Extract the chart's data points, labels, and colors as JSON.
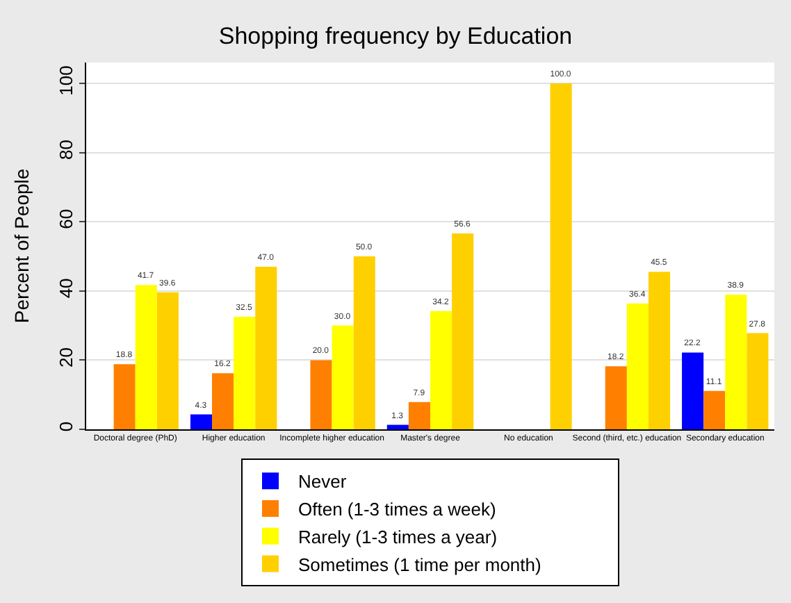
{
  "chart_data": {
    "type": "bar",
    "title": "Shopping frequency by Education",
    "ylabel": "Percent of People",
    "categories": [
      "Doctoral degree (PhD)",
      "Higher education",
      "Incomplete higher education",
      "Master's degree",
      "No education",
      "Second (third, etc.) education",
      "Secondary education"
    ],
    "series": [
      {
        "name": "Never",
        "color": "#0000ff",
        "values": [
          null,
          4.3,
          null,
          1.3,
          null,
          null,
          22.2
        ],
        "value_labels": [
          null,
          "4.3",
          null,
          "1.3",
          null,
          null,
          "22.2"
        ]
      },
      {
        "name": "Often (1-3 times a week)",
        "color": "#ff7f00",
        "values": [
          18.8,
          16.2,
          20.0,
          7.9,
          null,
          18.2,
          11.1
        ],
        "value_labels": [
          "18.8",
          "16.2",
          "20.0",
          "7.9",
          null,
          "18.2",
          "11.1"
        ]
      },
      {
        "name": "Rarely (1-3 times a year)",
        "color": "#ffff00",
        "values": [
          41.7,
          32.5,
          30.0,
          34.2,
          null,
          36.4,
          38.9
        ],
        "value_labels": [
          "41.7",
          "32.5",
          "30.0",
          "34.2",
          null,
          "36.4",
          "38.9"
        ]
      },
      {
        "name": "Sometimes (1 time per month)",
        "color": "#ffd000",
        "values": [
          39.6,
          47.0,
          50.0,
          56.6,
          100.0,
          45.5,
          27.8
        ],
        "value_labels": [
          "39.6",
          "47.0",
          "50.0",
          "56.6",
          "100.0",
          "45.5",
          "27.8"
        ]
      }
    ],
    "ylim": [
      0,
      106
    ],
    "yticks": [
      0,
      20,
      40,
      60,
      80,
      100
    ],
    "grid": "y",
    "legend": "bottom"
  }
}
